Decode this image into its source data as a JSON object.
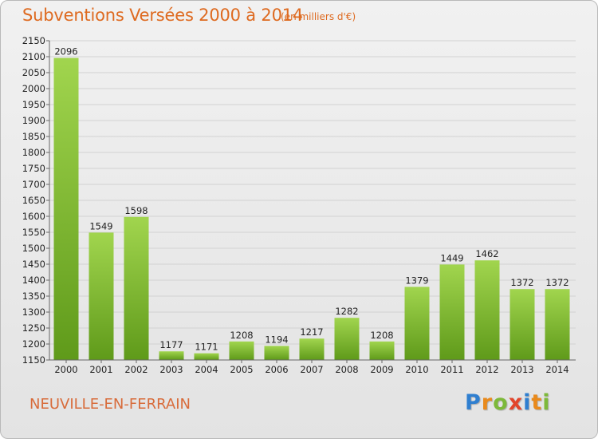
{
  "header": {
    "title": "Subventions Versées 2000 à 2014",
    "unit_note": "(en milliers d'€)"
  },
  "footer": {
    "commune": "NEUVILLE-EN-FERRAIN",
    "logo": "Proxiti",
    "logo_letters": [
      {
        "ch": "P",
        "color": "#2f7fd0"
      },
      {
        "ch": "r",
        "color": "#e98a1c"
      },
      {
        "ch": "o",
        "color": "#7db93a"
      },
      {
        "ch": "x",
        "color": "#e2452b"
      },
      {
        "ch": "i",
        "color": "#2f7fd0"
      },
      {
        "ch": "t",
        "color": "#e98a1c"
      },
      {
        "ch": "i",
        "color": "#7db93a"
      }
    ]
  },
  "colors": {
    "title": "#de6a20",
    "bar_top": "#a1d54e",
    "bar_bottom": "#5f9a1a",
    "grid": "#d2d2d2",
    "axis": "#666666"
  },
  "chart_data": {
    "type": "bar",
    "title": "Subventions Versées 2000 à 2014",
    "subtitle": "(en milliers d'€)",
    "categories": [
      "2000",
      "2001",
      "2002",
      "2003",
      "2004",
      "2005",
      "2006",
      "2007",
      "2008",
      "2009",
      "2010",
      "2011",
      "2012",
      "2013",
      "2014"
    ],
    "values": [
      2096,
      1549,
      1598,
      1177,
      1171,
      1208,
      1194,
      1217,
      1282,
      1208,
      1379,
      1449,
      1462,
      1372,
      1372
    ],
    "ylim": [
      1150,
      2150
    ],
    "yticks": [
      1150,
      1200,
      1250,
      1300,
      1350,
      1400,
      1450,
      1500,
      1550,
      1600,
      1650,
      1700,
      1750,
      1800,
      1850,
      1900,
      1950,
      2000,
      2050,
      2100,
      2150
    ],
    "grid": true,
    "xlabel": "",
    "ylabel": ""
  }
}
